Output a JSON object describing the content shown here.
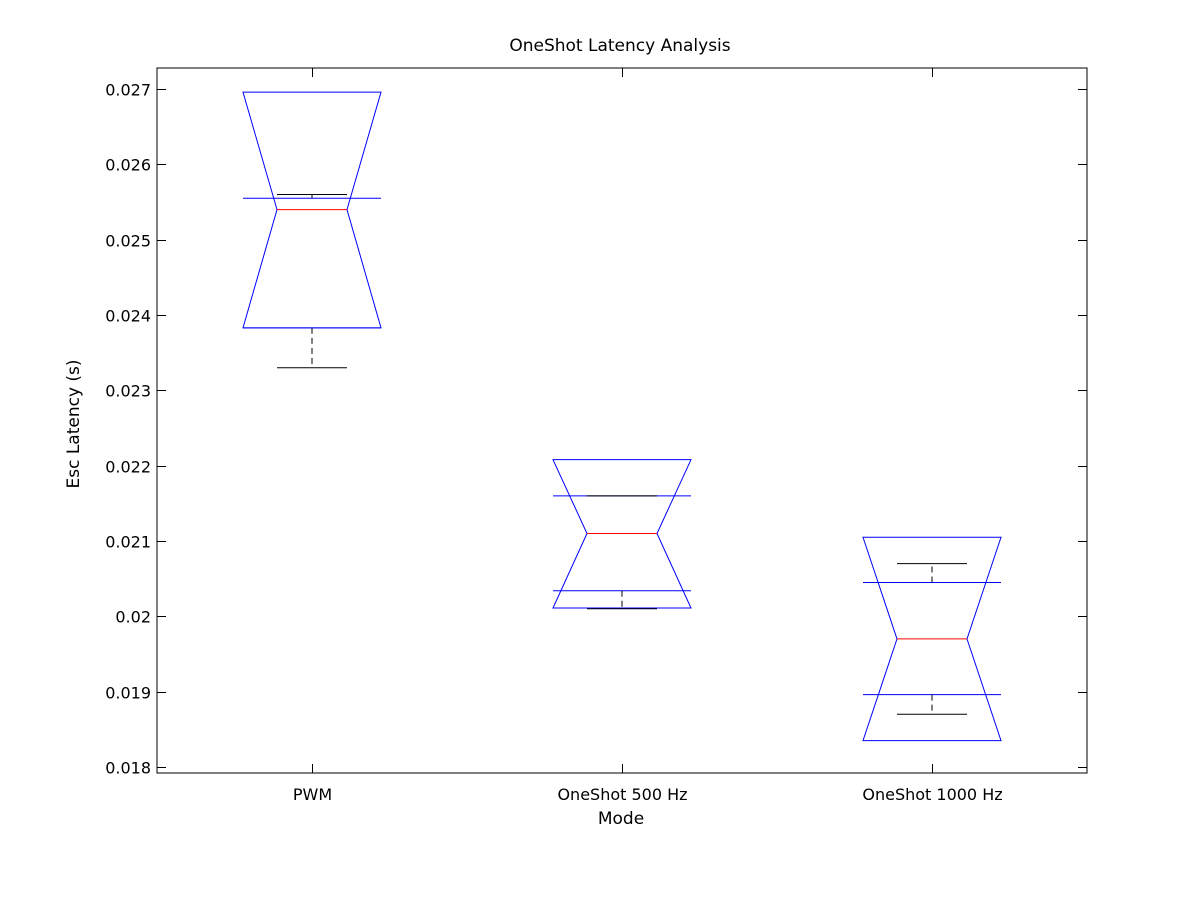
{
  "chart_data": {
    "type": "boxplot",
    "title": "OneShot Latency Analysis",
    "xlabel": "Mode",
    "ylabel": "Esc Latency (s)",
    "ylim": [
      0.01792,
      0.02728
    ],
    "yticks": [
      "0.018",
      "0.019",
      "0.02",
      "0.021",
      "0.022",
      "0.023",
      "0.024",
      "0.025",
      "0.026",
      "0.027"
    ],
    "categories": [
      "PWM",
      "OneShot 500 Hz",
      "OneShot 1000 Hz"
    ],
    "boxes": [
      {
        "name": "PWM",
        "lower_whisker": 0.0233,
        "q1": 0.02383,
        "median": 0.0254,
        "q3": 0.02555,
        "upper_whisker": 0.0256,
        "notch_low": 0.02383,
        "notch_high": 0.02696
      },
      {
        "name": "OneShot 500 Hz",
        "lower_whisker": 0.0201,
        "q1": 0.02034,
        "median": 0.0211,
        "q3": 0.0216,
        "upper_whisker": 0.0216,
        "notch_low": 0.02011,
        "notch_high": 0.02208
      },
      {
        "name": "OneShot 1000 Hz",
        "lower_whisker": 0.0187,
        "q1": 0.01896,
        "median": 0.0197,
        "q3": 0.02045,
        "upper_whisker": 0.0207,
        "notch_low": 0.01835,
        "notch_high": 0.02105
      }
    ],
    "colors": {
      "box": "#0000ff",
      "median": "#ff0000",
      "whisker": "#000000",
      "axes": "#000000"
    },
    "grid": false,
    "legend": "none"
  }
}
